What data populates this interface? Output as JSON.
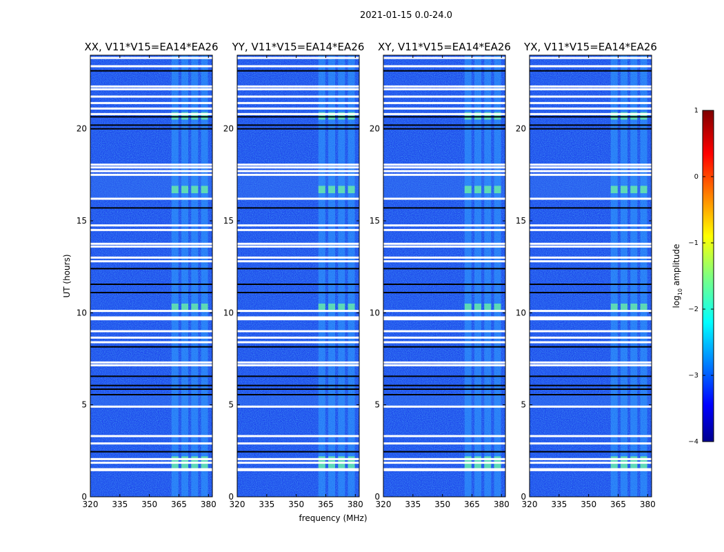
{
  "chart_data": {
    "type": "heatmap",
    "title": "2021-01-15 0.0-24.0",
    "xlabel": "frequency (MHz)",
    "ylabel": "UT (hours)",
    "xlim": [
      320,
      382
    ],
    "ylim": [
      0,
      24
    ],
    "xticks": [
      "320",
      "335",
      "350",
      "365",
      "380"
    ],
    "yticks": [
      "0",
      "5",
      "10",
      "15",
      "20"
    ],
    "colorbar": {
      "label_main": "log",
      "label_sub": "10",
      "label_rest": " amplitude",
      "min": -4,
      "max": 1,
      "ticks": [
        "−4",
        "−3",
        "−2",
        "−1",
        "0",
        "1"
      ],
      "colormap": "jet"
    },
    "panels": [
      {
        "title": "XX, V11*V15=EA14*EA26"
      },
      {
        "title": "YY, V11*V15=EA14*EA26"
      },
      {
        "title": "XY, V11*V15=EA14*EA26"
      },
      {
        "title": "YX, V11*V15=EA14*EA26"
      }
    ],
    "rfi_channels_mhz": [
      363,
      368,
      373,
      378
    ],
    "flagged_hours": [
      1.45,
      1.5,
      1.85,
      2.05,
      2.9,
      3.3,
      4.9,
      7.15,
      7.3,
      8.4,
      8.65,
      9.0,
      9.65,
      9.75,
      10.1,
      12.8,
      13.0,
      13.6,
      13.75,
      14.5,
      14.75,
      16.2,
      17.5,
      17.7,
      17.9,
      18.05,
      20.8,
      21.1,
      21.4,
      21.75,
      22.15,
      22.3,
      23.4,
      23.85
    ],
    "gap_hours": [
      2.45,
      5.55,
      5.85,
      6.05,
      6.55,
      8.15,
      11.1,
      11.55,
      12.4,
      15.7,
      20.0,
      20.2,
      20.65,
      23.15
    ]
  }
}
